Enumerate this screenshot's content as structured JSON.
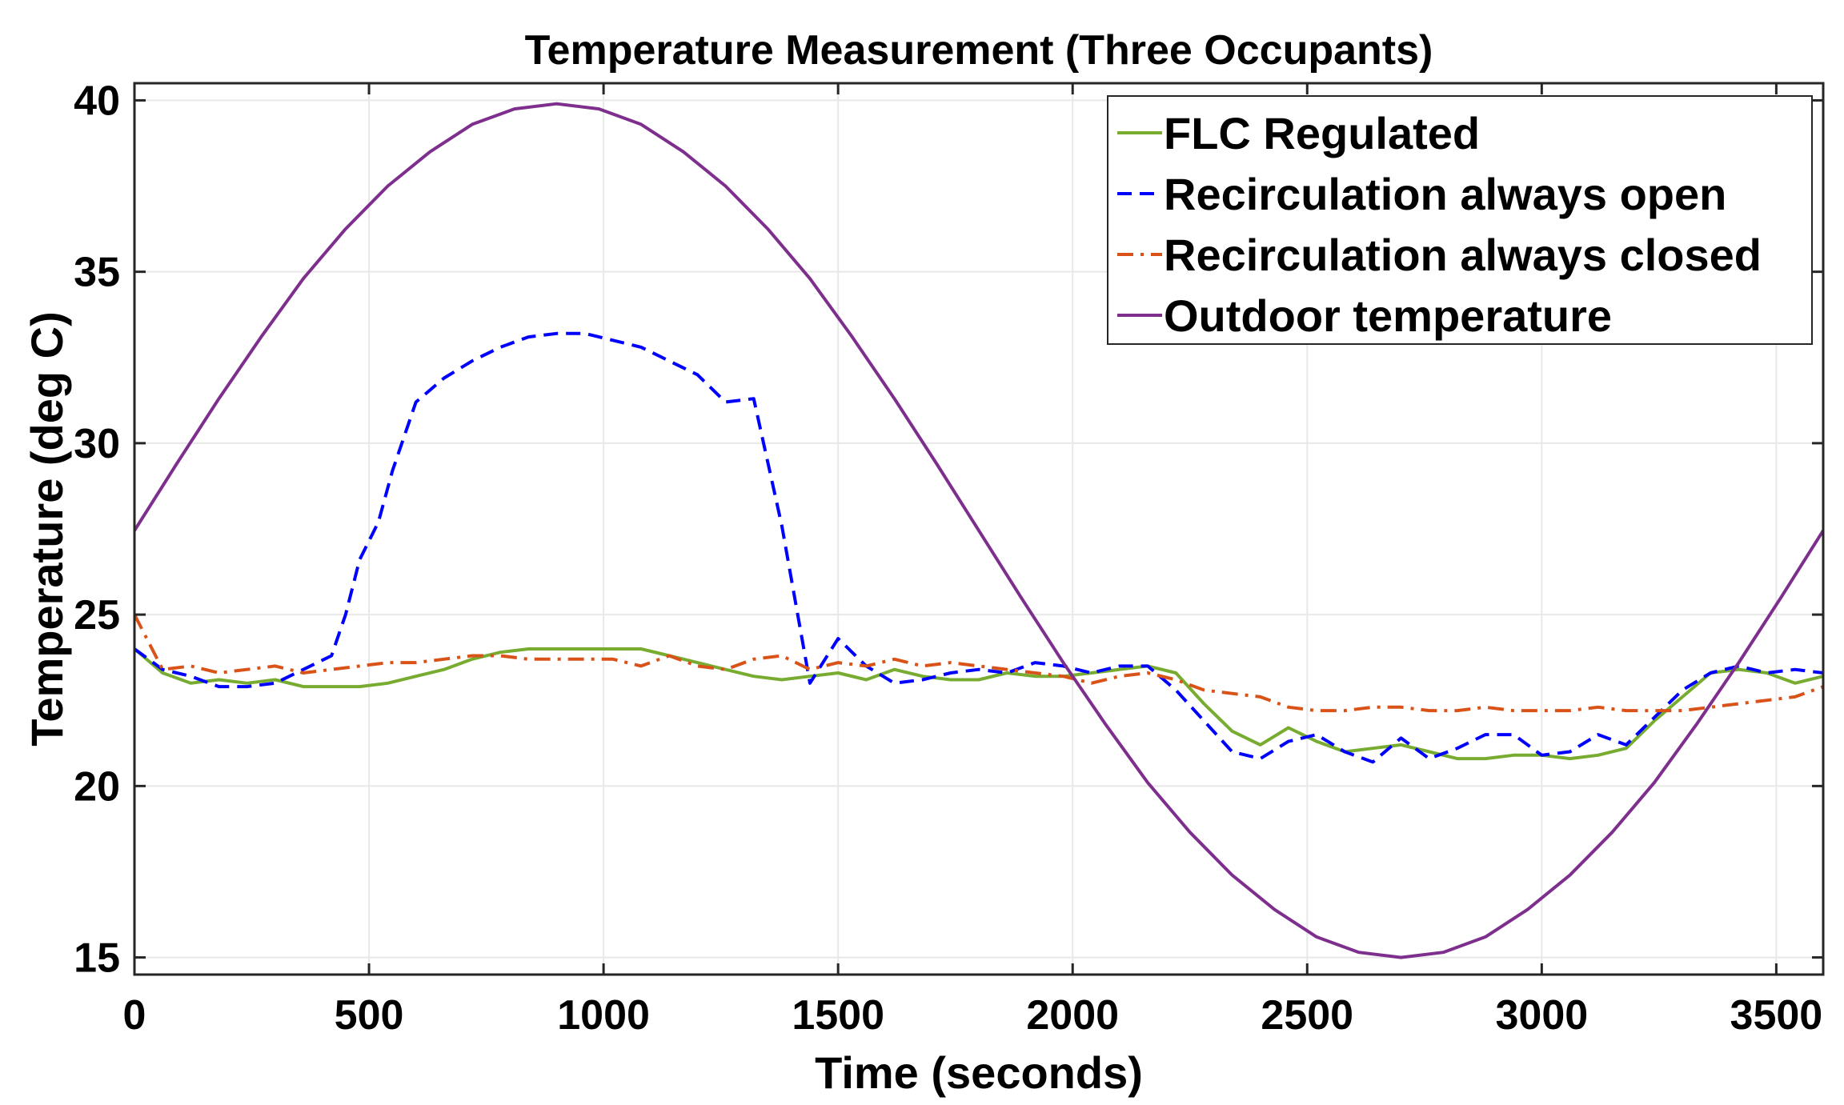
{
  "chart_data": {
    "type": "line",
    "title": "Temperature Measurement (Three Occupants)",
    "xlabel": "Time (seconds)",
    "ylabel": "Temperature (deg C)",
    "xlim": [
      0,
      3600
    ],
    "ylim": [
      14.5,
      40.5
    ],
    "xticks": [
      0,
      500,
      1000,
      1500,
      2000,
      2500,
      3000,
      3500
    ],
    "yticks": [
      15,
      20,
      25,
      30,
      35,
      40
    ],
    "grid": true,
    "legend_position": "top-right",
    "series": [
      {
        "name": "FLC Regulated",
        "color": "#77ac30",
        "style": "solid",
        "x": [
          0,
          60,
          120,
          180,
          240,
          300,
          360,
          420,
          480,
          540,
          600,
          660,
          720,
          780,
          840,
          900,
          960,
          1020,
          1080,
          1140,
          1200,
          1260,
          1320,
          1380,
          1440,
          1500,
          1560,
          1620,
          1680,
          1740,
          1800,
          1860,
          1920,
          1980,
          2040,
          2100,
          2160,
          2220,
          2280,
          2340,
          2400,
          2460,
          2520,
          2580,
          2640,
          2700,
          2760,
          2820,
          2880,
          2940,
          3000,
          3060,
          3120,
          3180,
          3240,
          3300,
          3360,
          3420,
          3480,
          3540,
          3600
        ],
        "y": [
          24.0,
          23.3,
          23.0,
          23.1,
          23.0,
          23.1,
          22.9,
          22.9,
          22.9,
          23.0,
          23.2,
          23.4,
          23.7,
          23.9,
          24.0,
          24.0,
          24.0,
          24.0,
          24.0,
          23.8,
          23.6,
          23.4,
          23.2,
          23.1,
          23.2,
          23.3,
          23.1,
          23.4,
          23.2,
          23.1,
          23.1,
          23.3,
          23.2,
          23.2,
          23.3,
          23.4,
          23.5,
          23.3,
          22.4,
          21.6,
          21.2,
          21.7,
          21.3,
          21.0,
          21.1,
          21.2,
          21.0,
          20.8,
          20.8,
          20.9,
          20.9,
          20.8,
          20.9,
          21.1,
          21.9,
          22.6,
          23.3,
          23.4,
          23.3,
          23.0,
          23.2
        ]
      },
      {
        "name": "Recirculation always open",
        "color": "#0000ff",
        "style": "dashed",
        "x": [
          0,
          60,
          120,
          180,
          240,
          300,
          360,
          420,
          450,
          480,
          520,
          550,
          600,
          660,
          720,
          780,
          840,
          900,
          960,
          1020,
          1080,
          1140,
          1200,
          1260,
          1320,
          1380,
          1440,
          1500,
          1560,
          1620,
          1680,
          1740,
          1800,
          1860,
          1920,
          1980,
          2040,
          2100,
          2160,
          2220,
          2280,
          2340,
          2400,
          2460,
          2520,
          2580,
          2640,
          2700,
          2760,
          2820,
          2880,
          2940,
          3000,
          3060,
          3120,
          3180,
          3240,
          3300,
          3360,
          3420,
          3480,
          3540,
          3600
        ],
        "y": [
          24.0,
          23.4,
          23.2,
          22.9,
          22.9,
          23.0,
          23.4,
          23.8,
          25.0,
          26.6,
          27.7,
          29.2,
          31.2,
          31.9,
          32.4,
          32.8,
          33.1,
          33.2,
          33.2,
          33.0,
          32.8,
          32.4,
          32.0,
          31.2,
          31.3,
          27.6,
          23.0,
          24.3,
          23.5,
          23.0,
          23.1,
          23.3,
          23.4,
          23.3,
          23.6,
          23.5,
          23.3,
          23.5,
          23.5,
          22.8,
          21.9,
          21.0,
          20.8,
          21.3,
          21.5,
          21.0,
          20.7,
          21.4,
          20.8,
          21.1,
          21.5,
          21.5,
          20.9,
          21.0,
          21.5,
          21.2,
          22.0,
          22.8,
          23.3,
          23.5,
          23.3,
          23.4,
          23.3
        ]
      },
      {
        "name": "Recirculation always closed",
        "color": "#d95319",
        "style": "dashdot",
        "x": [
          0,
          60,
          120,
          180,
          240,
          300,
          360,
          420,
          480,
          540,
          600,
          660,
          720,
          780,
          840,
          900,
          960,
          1020,
          1080,
          1140,
          1200,
          1260,
          1320,
          1380,
          1440,
          1500,
          1560,
          1620,
          1680,
          1740,
          1800,
          1860,
          1920,
          1980,
          2040,
          2100,
          2160,
          2220,
          2280,
          2340,
          2400,
          2460,
          2520,
          2580,
          2640,
          2700,
          2760,
          2820,
          2880,
          2940,
          3000,
          3060,
          3120,
          3180,
          3240,
          3300,
          3360,
          3420,
          3480,
          3540,
          3600
        ],
        "y": [
          25.0,
          23.4,
          23.5,
          23.3,
          23.4,
          23.5,
          23.3,
          23.4,
          23.5,
          23.6,
          23.6,
          23.7,
          23.8,
          23.8,
          23.7,
          23.7,
          23.7,
          23.7,
          23.5,
          23.8,
          23.5,
          23.4,
          23.7,
          23.8,
          23.4,
          23.6,
          23.5,
          23.7,
          23.5,
          23.6,
          23.5,
          23.4,
          23.3,
          23.2,
          23.0,
          23.2,
          23.3,
          23.1,
          22.8,
          22.7,
          22.6,
          22.3,
          22.2,
          22.2,
          22.3,
          22.3,
          22.2,
          22.2,
          22.3,
          22.2,
          22.2,
          22.2,
          22.3,
          22.2,
          22.2,
          22.2,
          22.3,
          22.4,
          22.5,
          22.6,
          22.9
        ]
      },
      {
        "name": "Outdoor temperature",
        "color": "#7e2f8e",
        "style": "solid",
        "x": [
          0,
          90,
          180,
          270,
          360,
          450,
          540,
          630,
          720,
          810,
          900,
          990,
          1080,
          1170,
          1260,
          1350,
          1440,
          1530,
          1620,
          1710,
          1800,
          1890,
          1980,
          2070,
          2160,
          2250,
          2340,
          2430,
          2520,
          2610,
          2700,
          2790,
          2880,
          2970,
          3060,
          3150,
          3240,
          3330,
          3420,
          3510,
          3600
        ],
        "y": [
          27.45,
          29.4,
          31.3,
          33.1,
          34.8,
          36.25,
          37.5,
          38.5,
          39.3,
          39.75,
          39.9,
          39.75,
          39.3,
          38.5,
          37.5,
          36.25,
          34.8,
          33.1,
          31.3,
          29.4,
          27.45,
          25.5,
          23.6,
          21.8,
          20.1,
          18.65,
          17.4,
          16.4,
          15.6,
          15.15,
          15.0,
          15.15,
          15.6,
          16.4,
          17.4,
          18.65,
          20.1,
          21.8,
          23.6,
          25.5,
          27.45
        ]
      }
    ]
  }
}
